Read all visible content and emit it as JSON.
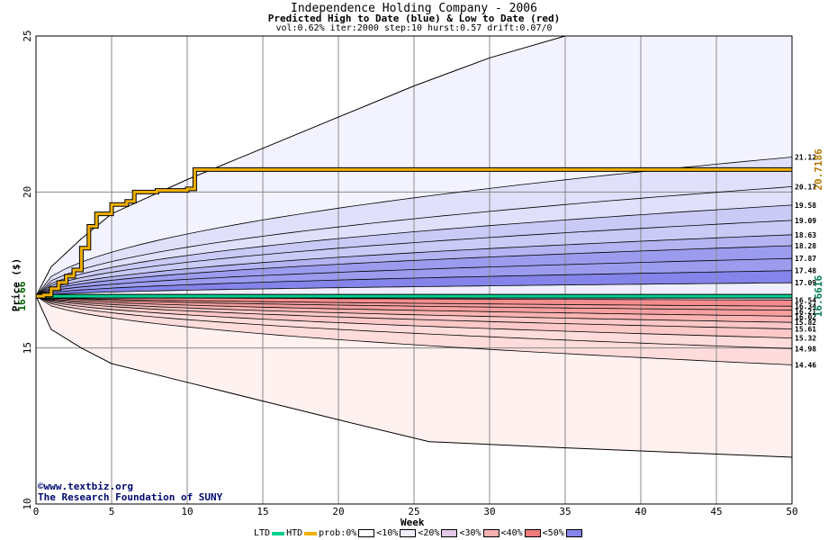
{
  "header": {
    "title": "Independence Holding Company - 2006",
    "subtitle": "Predicted High to Date (blue) &  Low to Date (red)",
    "params": "vol:0.62% iter:2000 step:10 hurst:0.57 drift:0.07/0"
  },
  "axes": {
    "ylabel": "Price ($)",
    "xlabel": "Week"
  },
  "watermark": {
    "line1": "©www.textbiz.org",
    "line2": "The Research Foundation of SUNY"
  },
  "legend": {
    "ltd": "LTD",
    "htd": "HTD",
    "prob": "prob:0%",
    "b10": "<10%",
    "b20": "<20%",
    "b30": "<30%",
    "b40": "<40%",
    "b50": "<50%"
  },
  "colors": {
    "htd": "#f0b000",
    "ltd": "#00d090",
    "blue_bands": [
      "#f3f3ff",
      "#e0e0fb",
      "#cacaf6",
      "#b4b4f2",
      "#9c9cef",
      "#8484eb"
    ],
    "red_bands": [
      "#fff1ef",
      "#ffdcdc",
      "#fcc8c8",
      "#fab4b4",
      "#f7a0a0",
      "#f48c8c"
    ]
  },
  "chart_data": {
    "type": "line",
    "xlim": [
      0,
      50
    ],
    "ylim": [
      10,
      25
    ],
    "x_ticks": [
      0,
      5,
      10,
      15,
      20,
      25,
      30,
      35,
      40,
      45,
      50
    ],
    "y_ticks": [
      10,
      15,
      20,
      25
    ],
    "start_price": 16.66,
    "start_price_label": "16.66",
    "htd_final_label": "20.7186",
    "ltd_final_label": "16.6616",
    "htd_series": [
      [
        0,
        16.66
      ],
      [
        0.5,
        16.7
      ],
      [
        1,
        16.9
      ],
      [
        1.5,
        17.1
      ],
      [
        2,
        17.3
      ],
      [
        2.5,
        17.5
      ],
      [
        3,
        18.2
      ],
      [
        3.5,
        18.9
      ],
      [
        4,
        19.3
      ],
      [
        5,
        19.6
      ],
      [
        6,
        19.7
      ],
      [
        6.5,
        20.0
      ],
      [
        8,
        20.05
      ],
      [
        10,
        20.1
      ],
      [
        10.5,
        20.7186
      ],
      [
        50,
        20.7186
      ]
    ],
    "ltd_series": [
      [
        0,
        16.66
      ],
      [
        50,
        16.6616
      ]
    ],
    "blue_quantiles": [
      {
        "label": "21.12",
        "final": 21.12
      },
      {
        "label": "20.17",
        "final": 20.17
      },
      {
        "label": "19.58",
        "final": 19.58
      },
      {
        "label": "19.09",
        "final": 19.09
      },
      {
        "label": "18.63",
        "final": 18.63
      },
      {
        "label": "18.28",
        "final": 18.28
      },
      {
        "label": "17.87",
        "final": 17.87
      },
      {
        "label": "17.48",
        "final": 17.48
      },
      {
        "label": "17.09",
        "final": 17.09
      }
    ],
    "red_quantiles": [
      {
        "label": "16.54",
        "final": 16.54
      },
      {
        "label": "16.34",
        "final": 16.34
      },
      {
        "label": "16.21",
        "final": 16.21
      },
      {
        "label": "16.02",
        "final": 16.02
      },
      {
        "label": "15.82",
        "final": 15.82
      },
      {
        "label": "15.61",
        "final": 15.61
      },
      {
        "label": "15.32",
        "final": 15.32
      },
      {
        "label": "14.98",
        "final": 14.98
      },
      {
        "label": "14.46",
        "final": 14.46
      }
    ],
    "upper_envelope": [
      [
        0,
        16.66
      ],
      [
        1,
        17.6
      ],
      [
        3,
        18.5
      ],
      [
        5,
        19.3
      ],
      [
        10,
        20.4
      ],
      [
        15,
        21.4
      ],
      [
        20,
        22.4
      ],
      [
        25,
        23.4
      ],
      [
        30,
        24.3
      ],
      [
        35,
        25.0
      ],
      [
        50,
        25.0
      ]
    ],
    "lower_envelope": [
      [
        0,
        16.66
      ],
      [
        1,
        15.6
      ],
      [
        3,
        15.0
      ],
      [
        5,
        14.5
      ],
      [
        10,
        13.9
      ],
      [
        15,
        13.3
      ],
      [
        20,
        12.7
      ],
      [
        26,
        12.0
      ],
      [
        35,
        11.8
      ],
      [
        45,
        11.6
      ],
      [
        50,
        11.5
      ]
    ]
  }
}
